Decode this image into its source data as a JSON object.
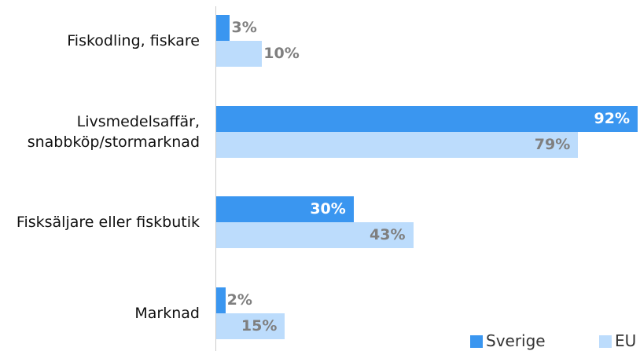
{
  "chart_data": {
    "type": "bar",
    "orientation": "horizontal",
    "categories": [
      "Fiskodling, fiskare",
      "Livsmedelsaffär,\nsnabbköp/stormarknad",
      "Fisksäljare eller fiskbutik",
      "Marknad"
    ],
    "series": [
      {
        "name": "Sverige",
        "color": "#3a96f0",
        "values": [
          3,
          92,
          30,
          2
        ],
        "value_labels": [
          "3%",
          "92%",
          "30%",
          "2%"
        ]
      },
      {
        "name": "EU",
        "color": "#bcdcfc",
        "values": [
          10,
          79,
          43,
          15
        ],
        "value_labels": [
          "10%",
          "79%",
          "43%",
          "15%"
        ]
      }
    ],
    "xlim": [
      0,
      92
    ],
    "legend": "bottom-right"
  }
}
